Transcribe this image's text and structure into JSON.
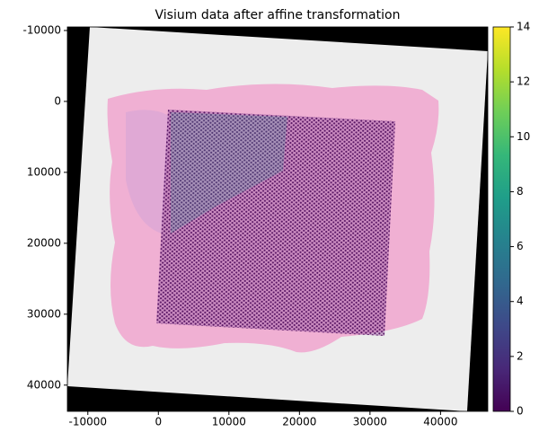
{
  "chart_data": {
    "type": "image",
    "title": "Visium data after affine transformation",
    "xlim": [
      -12900,
      46700
    ],
    "ylim": [
      43700,
      -10500
    ],
    "xticks": [
      -10000,
      0,
      10000,
      20000,
      30000,
      40000
    ],
    "yticks": [
      -10000,
      0,
      10000,
      20000,
      30000,
      40000
    ],
    "colormap": "viridis",
    "clim": [
      0,
      14
    ],
    "cticks": [
      0,
      2,
      4,
      6,
      8,
      10,
      12,
      14
    ]
  }
}
